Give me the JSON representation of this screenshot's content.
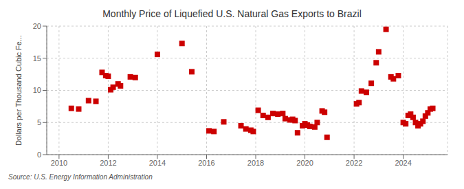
{
  "chart_data": {
    "type": "scatter",
    "title": "Monthly Price of Liquefied U.S. Natural Gas Exports to Brazil",
    "y_label": "Dollars per Thousand Cubic Fe...",
    "annotations": [
      "Source: U.S. Energy Information Administration"
    ],
    "color": "#CC0000",
    "marker": "square",
    "grid": true,
    "xlim": [
      2009.5,
      2025.8
    ],
    "ylim": [
      0,
      20
    ],
    "xticks": [
      2010,
      2012,
      2014,
      2016,
      2018,
      2020,
      2022,
      2024
    ],
    "yticks": [
      0,
      5,
      10,
      15,
      20
    ],
    "x": [
      2010.5,
      2010.8,
      2011.2,
      2011.5,
      2011.75,
      2011.9,
      2012.0,
      2012.1,
      2012.2,
      2012.4,
      2012.5,
      2012.9,
      2013.1,
      2014.0,
      2015.0,
      2015.4,
      2016.1,
      2016.3,
      2016.7,
      2017.4,
      2017.6,
      2017.8,
      2017.9,
      2018.1,
      2018.3,
      2018.5,
      2018.7,
      2018.9,
      2019.1,
      2019.2,
      2019.4,
      2019.5,
      2019.6,
      2019.7,
      2019.9,
      2020.0,
      2020.1,
      2020.2,
      2020.4,
      2020.5,
      2020.7,
      2020.8,
      2020.9,
      2022.1,
      2022.2,
      2022.3,
      2022.5,
      2022.7,
      2022.9,
      2023.0,
      2023.3,
      2023.5,
      2023.6,
      2023.8,
      2024.0,
      2024.1,
      2024.2,
      2024.3,
      2024.4,
      2024.5,
      2024.6,
      2024.7,
      2024.8,
      2024.9,
      2025.0,
      2025.1,
      2025.2
    ],
    "values": [
      7.2,
      7.1,
      8.4,
      8.3,
      12.8,
      12.3,
      12.2,
      10.1,
      10.5,
      11.0,
      10.7,
      12.1,
      12.0,
      15.6,
      17.3,
      12.9,
      3.7,
      3.6,
      5.1,
      4.5,
      4.0,
      3.8,
      3.6,
      6.9,
      6.1,
      5.8,
      6.4,
      6.3,
      6.4,
      5.6,
      5.4,
      5.5,
      5.3,
      3.4,
      4.5,
      4.8,
      4.6,
      4.4,
      4.3,
      5.0,
      6.8,
      6.6,
      2.7,
      7.9,
      8.1,
      9.9,
      9.7,
      11.1,
      14.3,
      16.0,
      19.5,
      12.1,
      11.8,
      12.3,
      5.0,
      4.8,
      6.1,
      6.3,
      5.8,
      5.0,
      4.5,
      4.8,
      5.2,
      6.0,
      6.5,
      7.1,
      7.2
    ]
  }
}
